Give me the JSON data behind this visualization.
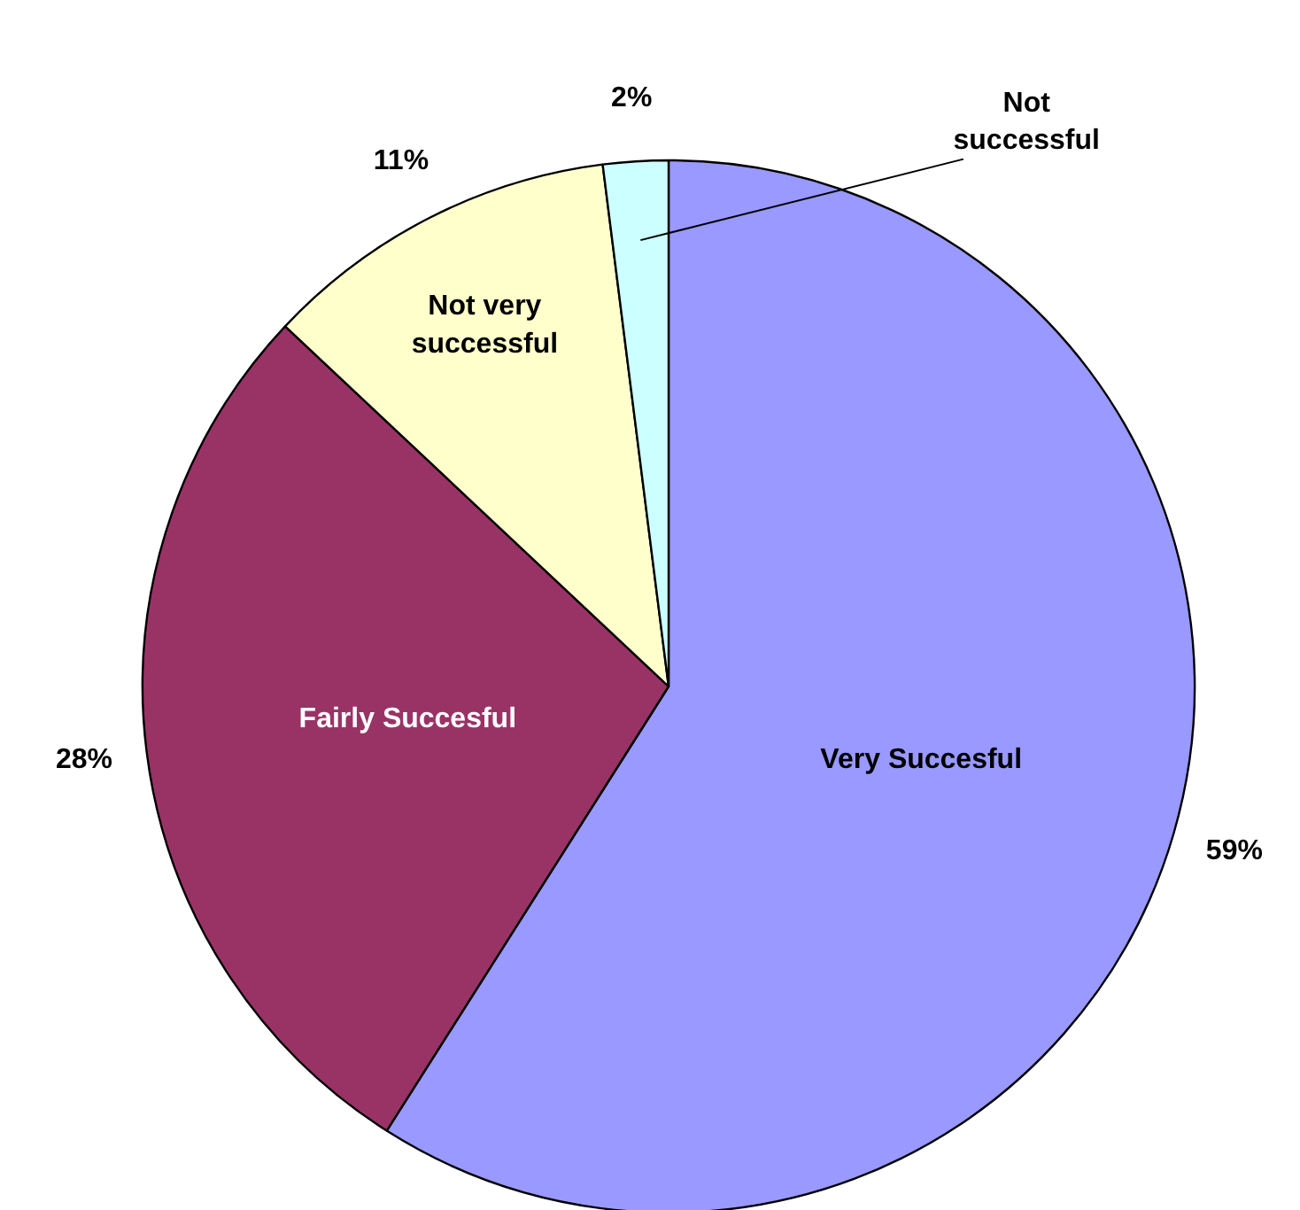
{
  "chart_data": {
    "type": "pie",
    "categories": [
      "Very Succesful",
      "Fairly Succesful",
      "Not very\nsuccessful",
      "Not\nsuccessful"
    ],
    "values": [
      59,
      28,
      11,
      2
    ],
    "colors": [
      "#9999ff",
      "#993366",
      "#ffffcc",
      "#ccffff"
    ],
    "value_labels": [
      "59%",
      "28%",
      "11%",
      "2%"
    ]
  }
}
